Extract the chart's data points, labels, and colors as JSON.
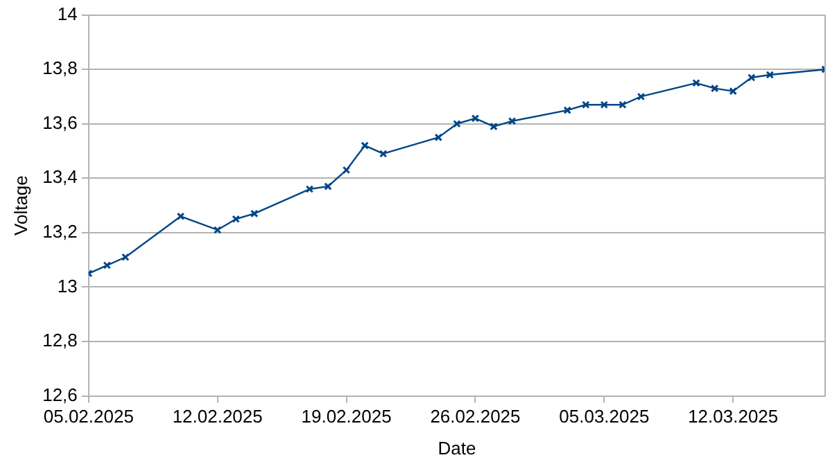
{
  "chart_data": {
    "type": "line",
    "xlabel": "Date",
    "ylabel": "Voltage",
    "x": [
      "2025-02-05",
      "2025-02-06",
      "2025-02-07",
      "2025-02-10",
      "2025-02-12",
      "2025-02-13",
      "2025-02-14",
      "2025-02-17",
      "2025-02-18",
      "2025-02-19",
      "2025-02-20",
      "2025-02-21",
      "2025-02-24",
      "2025-02-25",
      "2025-02-26",
      "2025-02-27",
      "2025-02-28",
      "2025-03-03",
      "2025-03-04",
      "2025-03-05",
      "2025-03-06",
      "2025-03-07",
      "2025-03-10",
      "2025-03-11",
      "2025-03-12",
      "2025-03-13",
      "2025-03-14",
      "2025-03-17"
    ],
    "series": [
      {
        "color": "#004586",
        "values": [
          13.05,
          13.08,
          13.11,
          13.26,
          13.21,
          13.25,
          13.27,
          13.36,
          13.37,
          13.43,
          13.52,
          13.49,
          13.55,
          13.6,
          13.62,
          13.59,
          13.61,
          13.65,
          13.67,
          13.67,
          13.67,
          13.7,
          13.75,
          13.73,
          13.72,
          13.77,
          13.78,
          13.8
        ]
      }
    ],
    "xlim": [
      "2025-02-05",
      "2025-03-17"
    ],
    "xticks": [
      {
        "value": "2025-02-05",
        "label": "05.02.2025"
      },
      {
        "value": "2025-02-12",
        "label": "12.02.2025"
      },
      {
        "value": "2025-02-19",
        "label": "19.02.2025"
      },
      {
        "value": "2025-02-26",
        "label": "26.02.2025"
      },
      {
        "value": "2025-03-05",
        "label": "05.03.2025"
      },
      {
        "value": "2025-03-12",
        "label": "12.03.2025"
      }
    ],
    "ylim": [
      12.6,
      14
    ],
    "yticks": [
      {
        "value": 12.6,
        "label": "12,6"
      },
      {
        "value": 12.8,
        "label": "12,8"
      },
      {
        "value": 13,
        "label": "13"
      },
      {
        "value": 13.2,
        "label": "13,2"
      },
      {
        "value": 13.4,
        "label": "13,4"
      },
      {
        "value": 13.6,
        "label": "13,6"
      },
      {
        "value": 13.8,
        "label": "13,8"
      },
      {
        "value": 14,
        "label": "14"
      }
    ],
    "grid": "y",
    "legend": false,
    "marker": "cross",
    "line_style": "solid"
  }
}
